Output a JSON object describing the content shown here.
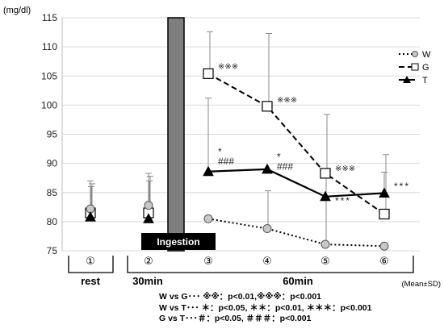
{
  "chart_data": {
    "type": "line",
    "y_unit": "(mg/dl)",
    "ylim": [
      75,
      115
    ],
    "y_ticks": [
      75,
      80,
      85,
      90,
      95,
      100,
      105,
      110,
      115
    ],
    "grid": true,
    "legend_position": "right",
    "x_points": [
      "①",
      "②",
      "③",
      "④",
      "⑤",
      "⑥"
    ],
    "series": [
      {
        "name": "W",
        "style": "dotted",
        "marker": "circle",
        "color": "#000000",
        "fill": "#c8c8c8",
        "values": [
          82.2,
          82.8,
          80.5,
          78.8,
          76.1,
          75.8
        ],
        "sd_upper": [
          86.0,
          87.0,
          null,
          85.3,
          89.0,
          null
        ]
      },
      {
        "name": "G",
        "style": "dashed",
        "marker": "square",
        "color": "#000000",
        "fill": "#ffffff",
        "values": [
          81.5,
          81.5,
          105.4,
          99.8,
          88.3,
          81.3
        ],
        "sd_upper": [
          86.5,
          87.8,
          112.6,
          112.3,
          98.4,
          91.5
        ]
      },
      {
        "name": "T",
        "style": "solid",
        "marker": "triangle",
        "color": "#000000",
        "fill": "#000000",
        "values": [
          80.8,
          80.5,
          88.6,
          89.0,
          84.3,
          84.9
        ],
        "sd_upper": [
          87.0,
          88.3,
          101.2,
          null,
          null,
          88.5
        ]
      }
    ],
    "annotations": [
      {
        "text": "※※※",
        "x_index": 2,
        "y": 106.2
      },
      {
        "text": "※※※",
        "x_index": 3,
        "y": 100.5
      },
      {
        "text": "※※※",
        "x_index": 4,
        "y": 88.7
      },
      {
        "text": "*",
        "x_index": 2,
        "y": 91.5
      },
      {
        "text": "###",
        "x_index": 2,
        "y": 89.8
      },
      {
        "text": "*",
        "x_index": 3,
        "y": 90.6
      },
      {
        "text": "###",
        "x_index": 3,
        "y": 88.9
      },
      {
        "text": "***",
        "x_index": 4,
        "y": 83.0
      },
      {
        "text": "***",
        "x_index": 5,
        "y": 85.5
      }
    ],
    "ingestion_label": "Ingestion",
    "phase_labels": [
      {
        "text": "rest"
      },
      {
        "text": "30min"
      },
      {
        "text": "60min"
      }
    ],
    "note_mean_sd": "(Mean±SD)"
  },
  "notes": [
    "W vs G･･･ ※※：p<0.01,※※※：p<0.001",
    "W vs T･･･ ＊：p<0.05, ＊＊：p<0.01, ＊＊＊：p<0.001",
    "G vs T･･･＃：p<0.05, ＃＃＃：p<0.001"
  ]
}
